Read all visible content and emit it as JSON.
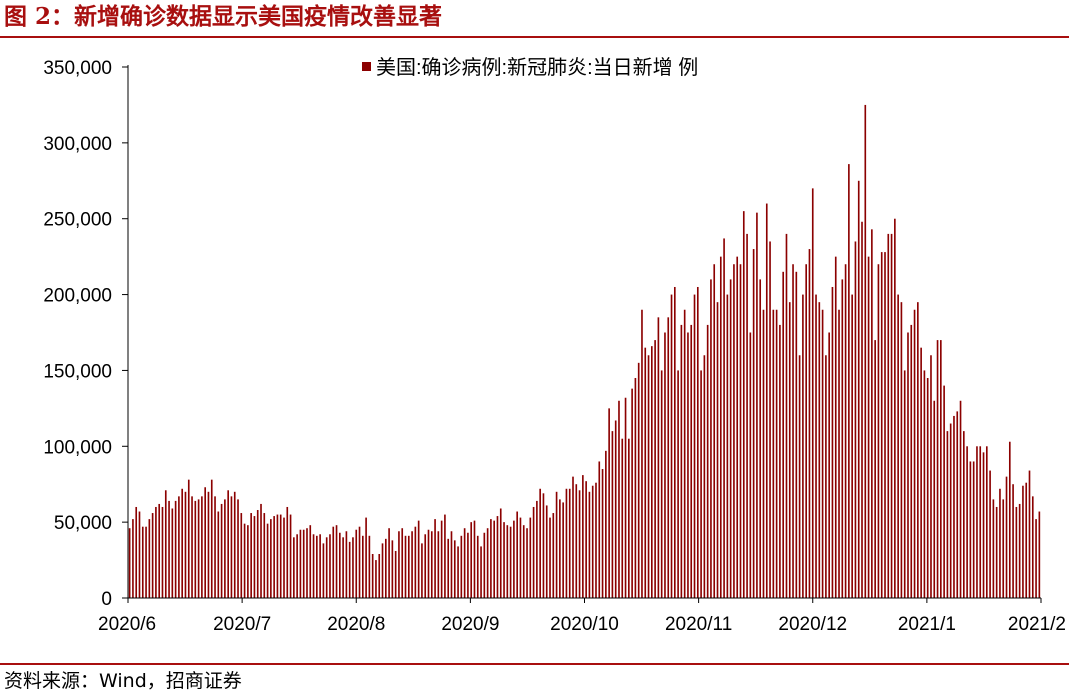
{
  "figure": {
    "title": "图 2：新增确诊数据显示美国疫情改善显著",
    "source": "资料来源：Wind，招商证券"
  },
  "colors": {
    "bar": "#8b0000",
    "rule": "#a80f0f",
    "axis": "#000000"
  },
  "chart_data": {
    "type": "bar",
    "legend": {
      "label": "美国:确诊病例:新冠肺炎:当日新增 例",
      "position": "top-center"
    },
    "ylim": [
      0,
      350000
    ],
    "yticks": [
      0,
      50000,
      100000,
      150000,
      200000,
      250000,
      300000,
      350000
    ],
    "ytick_labels": [
      "0",
      "50,000",
      "100,000",
      "150,000",
      "200,000",
      "250,000",
      "300,000",
      "350,000"
    ],
    "xtick_labels": [
      "2020/6",
      "2020/7",
      "2020/8",
      "2020/9",
      "2020/10",
      "2020/11",
      "2020/12",
      "2021/1",
      "2021/2"
    ],
    "grid": false,
    "series": [
      {
        "name": "美国:确诊病例:新冠肺炎:当日新增 例",
        "values": [
          46000,
          52000,
          60000,
          57000,
          47000,
          47000,
          52000,
          56000,
          60000,
          62000,
          60000,
          71000,
          64000,
          59000,
          64000,
          67000,
          72000,
          70000,
          78000,
          67000,
          64000,
          65000,
          67000,
          73000,
          70000,
          78000,
          67000,
          57000,
          62000,
          65000,
          71000,
          67000,
          70000,
          65000,
          56000,
          49000,
          48000,
          56000,
          54000,
          58000,
          62000,
          56000,
          49000,
          52000,
          54000,
          55000,
          55000,
          53000,
          60000,
          55000,
          40000,
          42000,
          45000,
          45000,
          46000,
          48000,
          42000,
          41000,
          42000,
          36000,
          40000,
          42000,
          47000,
          48000,
          43000,
          40000,
          44000,
          37000,
          40000,
          45000,
          47000,
          41000,
          53000,
          41000,
          29000,
          25000,
          29000,
          36000,
          39000,
          46000,
          38000,
          31000,
          44000,
          46000,
          41000,
          41000,
          44000,
          47000,
          51000,
          36000,
          42000,
          45000,
          44000,
          52000,
          44000,
          51000,
          55000,
          39000,
          44000,
          38000,
          34000,
          41000,
          46000,
          43000,
          50000,
          51000,
          41000,
          34000,
          43000,
          46000,
          52000,
          51000,
          54000,
          59000,
          50000,
          48000,
          47000,
          51000,
          57000,
          53000,
          48000,
          46000,
          53000,
          60000,
          64000,
          72000,
          69000,
          61000,
          53000,
          56000,
          70000,
          65000,
          63000,
          72000,
          72000,
          80000,
          75000,
          71000,
          81000,
          77000,
          70000,
          74000,
          76000,
          90000,
          85000,
          97000,
          125000,
          110000,
          117000,
          130000,
          105000,
          132000,
          105000,
          138000,
          145000,
          155000,
          190000,
          165000,
          160000,
          166000,
          170000,
          185000,
          150000,
          175000,
          185000,
          200000,
          205000,
          150000,
          180000,
          190000,
          175000,
          180000,
          200000,
          205000,
          150000,
          160000,
          180000,
          210000,
          220000,
          195000,
          225000,
          237000,
          200000,
          210000,
          220000,
          225000,
          220000,
          255000,
          240000,
          175000,
          230000,
          254000,
          210000,
          190000,
          260000,
          235000,
          190000,
          190000,
          180000,
          215000,
          240000,
          195000,
          220000,
          215000,
          160000,
          200000,
          220000,
          230000,
          270000,
          200000,
          195000,
          190000,
          160000,
          175000,
          205000,
          225000,
          190000,
          210000,
          220000,
          286000,
          200000,
          235000,
          275000,
          248000,
          325000,
          225000,
          243000,
          170000,
          220000,
          228000,
          228000,
          240000,
          240000,
          250000,
          200000,
          195000,
          150000,
          175000,
          180000,
          190000,
          195000,
          165000,
          150000,
          145000,
          160000,
          130000,
          170000,
          170000,
          140000,
          110000,
          115000,
          120000,
          123000,
          130000,
          110000,
          100000,
          90000,
          90000,
          100000,
          100000,
          96000,
          100000,
          84000,
          65000,
          60000,
          72000,
          65000,
          80000,
          103000,
          75000,
          60000,
          62000,
          74000,
          76000,
          84000,
          67000,
          52000,
          57000
        ]
      }
    ]
  }
}
